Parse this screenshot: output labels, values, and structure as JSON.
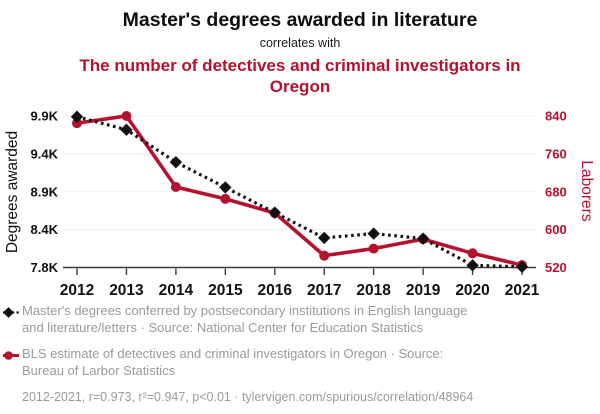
{
  "header": {
    "title": "Master's degrees awarded in literature",
    "connector": "correlates with",
    "subtitle": "The number of detectives and criminal investigators in Oregon"
  },
  "colors": {
    "series_black": "#111111",
    "series_red": "#b5122f",
    "legend_text": "#9a9a9a",
    "gridline": "#ececec",
    "axis": "#3d3d3d",
    "tick_label": "#111111"
  },
  "chart_data": {
    "type": "line",
    "title": "Master's degrees awarded in literature correlates with The number of detectives and criminal investigators in Oregon",
    "x": [
      2012,
      2013,
      2014,
      2015,
      2016,
      2017,
      2018,
      2019,
      2020,
      2021
    ],
    "series": [
      {
        "name": "Master's degrees awarded in literature",
        "axis": "left",
        "color": "#111111",
        "style": "dashed",
        "marker": "diamond",
        "values": [
          9890,
          9710,
          9260,
          8910,
          8560,
          8210,
          8270,
          8200,
          7830,
          7810
        ]
      },
      {
        "name": "The number of detectives and criminal investigators in Oregon",
        "axis": "right",
        "color": "#b5122f",
        "style": "solid",
        "marker": "circle",
        "values": [
          825,
          840,
          690,
          665,
          635,
          545,
          560,
          580,
          550,
          525
        ]
      }
    ],
    "left_axis": {
      "label": "Degrees awarded",
      "range": [
        7800,
        9900
      ],
      "tick_labels": [
        "9.9K",
        "9.4K",
        "8.9K",
        "8.4K",
        "7.8K"
      ]
    },
    "right_axis": {
      "label": "Laborers",
      "range": [
        520,
        840
      ],
      "tick_labels": [
        "840",
        "760",
        "680",
        "600",
        "520"
      ]
    },
    "grid": "horizontal",
    "legend_position": "bottom"
  },
  "legend": {
    "items": [
      {
        "marker": "black-diamond-dashed",
        "lines": [
          "Master's degrees conferred by postsecondary institutions in English language",
          "and literature/letters · Source: National Center for Education Statistics"
        ]
      },
      {
        "marker": "red-circle-solid",
        "lines": [
          "BLS estimate of detectives and criminal investigators in Oregon · Source:",
          "Bureau of Larbor Statistics"
        ]
      }
    ]
  },
  "footer": {
    "text": "2012-2021, r=0.973, r²=0.947, p<0.01 · tylervigen.com/spurious/correlation/48964"
  }
}
